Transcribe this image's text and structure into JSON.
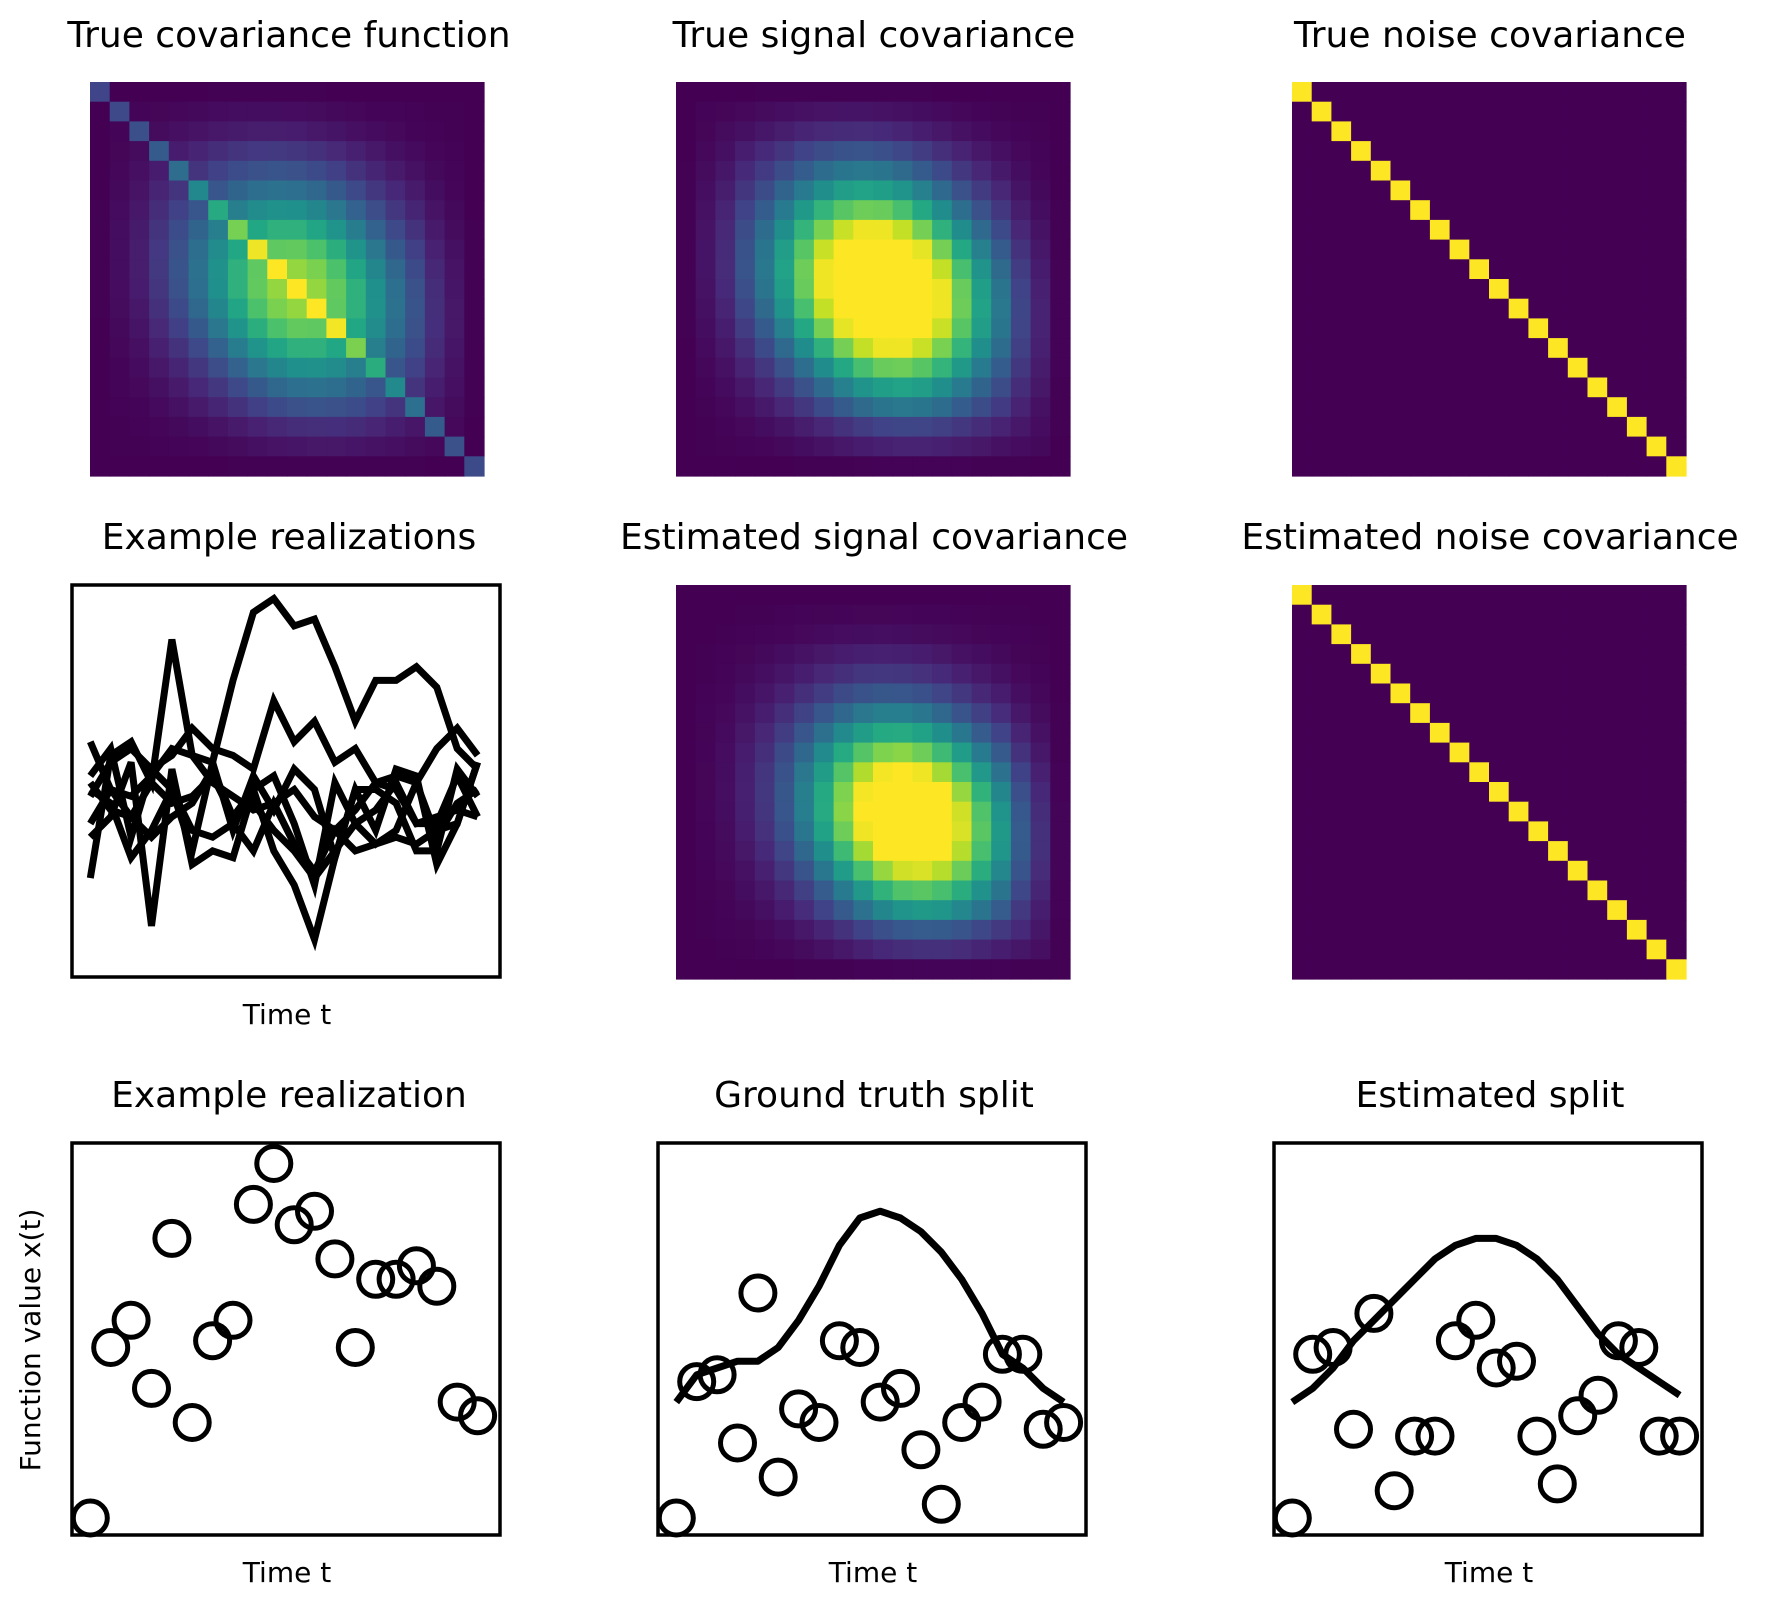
{
  "figure": {
    "colormap": "viridis",
    "line_color": "#000000",
    "marker_color": "#000000"
  },
  "panels": {
    "true_cov": {
      "title": "True covariance function"
    },
    "true_signal": {
      "title": "True signal covariance"
    },
    "true_noise": {
      "title": "True noise covariance"
    },
    "example_realizations": {
      "title": "Example realizations",
      "xlabel": "Time t"
    },
    "est_signal": {
      "title": "Estimated signal covariance"
    },
    "est_noise": {
      "title": "Estimated noise covariance"
    },
    "example_realization": {
      "title": "Example realization",
      "xlabel": "Time t",
      "ylabel": "Function value x(t)"
    },
    "ground_truth_split": {
      "title": "Ground truth split",
      "xlabel": "Time t"
    },
    "estimated_split": {
      "title": "Estimated split",
      "xlabel": "Time t"
    }
  },
  "chart_data": [
    {
      "id": "true_cov",
      "type": "heatmap",
      "title": "True covariance function",
      "size": 20,
      "model": "signal_plus_diagonal_noise",
      "signal_center": [
        10.5,
        10.5
      ],
      "signal_width": 4.2,
      "noise_variance": 0.35,
      "value_range": [
        0,
        1.15
      ]
    },
    {
      "id": "true_signal",
      "type": "heatmap",
      "title": "True signal covariance",
      "size": 20,
      "model": "gaussian_bump",
      "signal_center": [
        10.5,
        10.5
      ],
      "signal_width": 4.2,
      "value_range": [
        0,
        0.75
      ]
    },
    {
      "id": "true_noise",
      "type": "heatmap",
      "title": "True noise covariance",
      "size": 20,
      "model": "identity",
      "value_range": [
        0,
        1
      ]
    },
    {
      "id": "example_realizations",
      "type": "line",
      "title": "Example realizations",
      "xlabel": "Time t",
      "ylabel": "",
      "xlim": [
        -0.9,
        20.1
      ],
      "ylim": [
        -2.75,
        3.0
      ],
      "x": [
        0,
        1,
        2,
        3,
        4,
        5,
        6,
        7,
        8,
        9,
        10,
        11,
        12,
        13,
        14,
        15,
        16,
        17,
        18,
        19
      ],
      "series": [
        {
          "values": [
            0.7,
            0.0,
            -0.1,
            0.2,
            0.6,
            0.5,
            0.4,
            1.6,
            2.6,
            2.8,
            2.4,
            2.5,
            1.8,
            1.0,
            1.6,
            1.6,
            1.8,
            1.5,
            0.6,
            0.3
          ]
        },
        {
          "values": [
            -0.1,
            0.4,
            0.6,
            0.3,
            0.5,
            0.9,
            0.6,
            0.5,
            0.3,
            1.3,
            0.7,
            1.0,
            0.4,
            0.6,
            0.1,
            0.2,
            0.1,
            0.6,
            0.9,
            0.5
          ]
        },
        {
          "values": [
            -1.3,
            0.5,
            0.7,
            0.1,
            2.2,
            0.5,
            0.1,
            -0.1,
            -0.3,
            -0.2,
            0.0,
            -0.4,
            -0.6,
            -0.3,
            0.1,
            0.0,
            -0.5,
            -0.4,
            -0.3,
            -0.4
          ]
        },
        {
          "values": [
            0.2,
            0.6,
            -0.7,
            0.3,
            0.0,
            -0.9,
            0.4,
            -0.6,
            0.2,
            -0.3,
            0.3,
            0.0,
            -1.0,
            0.0,
            -0.6,
            0.3,
            0.2,
            -1.1,
            -0.5,
            0.4
          ]
        },
        {
          "values": [
            -0.5,
            0.0,
            -0.4,
            -0.7,
            -0.4,
            -0.2,
            0.3,
            -0.4,
            0.0,
            0.2,
            -0.5,
            -1.4,
            0.1,
            -0.5,
            -0.8,
            -0.6,
            0.1,
            -0.7,
            -0.2,
            0.0
          ]
        },
        {
          "values": [
            0.0,
            -0.2,
            -1.0,
            -0.6,
            0.0,
            -0.6,
            -0.7,
            -0.5,
            -0.9,
            -0.2,
            -0.8,
            -1.2,
            -0.6,
            -0.9,
            -0.8,
            -0.7,
            -0.8,
            -0.6,
            -0.5,
            0.4
          ]
        },
        {
          "values": [
            -0.7,
            -0.4,
            0.4,
            -2.0,
            0.3,
            -1.1,
            -0.9,
            -1.0,
            0.0,
            -0.9,
            -1.4,
            -2.2,
            -1.0,
            0.0,
            0.0,
            -0.2,
            -0.9,
            -0.9,
            0.3,
            -0.1
          ]
        },
        {
          "values": [
            0.1,
            -0.3,
            -0.4,
            0.1,
            -0.2,
            -0.1,
            0.2,
            -0.4,
            -0.2,
            -0.6,
            -0.9,
            -1.3,
            -0.9,
            -0.5,
            -0.3,
            0.1,
            -0.5,
            -0.5,
            0.2,
            -0.4
          ]
        }
      ]
    },
    {
      "id": "est_signal",
      "type": "heatmap",
      "title": "Estimated signal covariance",
      "size": 20,
      "model": "gaussian_bump",
      "signal_center": [
        11.8,
        11.8
      ],
      "signal_width": 3.9,
      "value_range": [
        0,
        0.8
      ]
    },
    {
      "id": "est_noise",
      "type": "heatmap",
      "title": "Estimated noise covariance",
      "size": 20,
      "model": "identity",
      "value_range": [
        0,
        1
      ]
    },
    {
      "id": "example_realization",
      "type": "scatter",
      "title": "Example realization",
      "xlabel": "Time t",
      "ylabel": "Function value x(t)",
      "xlim": [
        -0.9,
        20.1
      ],
      "ylim": [
        -2.75,
        3.0
      ],
      "x": [
        0,
        1,
        2,
        3,
        4,
        5,
        6,
        7,
        8,
        9,
        10,
        11,
        12,
        13,
        14,
        15,
        16,
        17,
        18,
        19
      ],
      "y": [
        -2.5,
        0.0,
        0.4,
        -0.6,
        1.6,
        -1.1,
        0.1,
        0.4,
        2.1,
        2.7,
        1.8,
        2.0,
        1.3,
        0.0,
        1.0,
        1.0,
        1.2,
        0.9,
        -0.8,
        -1.0
      ]
    },
    {
      "id": "ground_truth_split",
      "type": "scatter",
      "title": "Ground truth split",
      "xlabel": "Time t",
      "ylabel": "",
      "xlim": [
        -0.9,
        20.1
      ],
      "ylim": [
        -2.75,
        3.0
      ],
      "x": [
        0,
        1,
        2,
        3,
        4,
        5,
        6,
        7,
        8,
        9,
        10,
        11,
        12,
        13,
        14,
        15,
        16,
        17,
        18,
        19
      ],
      "y": [
        -2.5,
        -0.5,
        -0.4,
        -1.4,
        0.8,
        -1.9,
        -0.9,
        -1.1,
        0.1,
        0.0,
        -0.8,
        -0.6,
        -1.5,
        -2.3,
        -1.1,
        -0.8,
        -0.1,
        -0.1,
        -1.2,
        -1.1
      ],
      "line_x": [
        0,
        1,
        2,
        3,
        4,
        5,
        6,
        7,
        8,
        9,
        10,
        11,
        12,
        13,
        14,
        15,
        16,
        17,
        18,
        19
      ],
      "line_y": [
        -0.8,
        -0.4,
        -0.3,
        -0.2,
        -0.2,
        0.0,
        0.4,
        0.9,
        1.5,
        1.9,
        2.0,
        1.9,
        1.7,
        1.4,
        1.0,
        0.5,
        -0.1,
        -0.3,
        -0.6,
        -0.8
      ]
    },
    {
      "id": "estimated_split",
      "type": "scatter",
      "title": "Estimated split",
      "xlabel": "Time t",
      "ylabel": "",
      "xlim": [
        -0.9,
        20.1
      ],
      "ylim": [
        -2.75,
        3.0
      ],
      "x": [
        0,
        1,
        2,
        3,
        4,
        5,
        6,
        7,
        8,
        9,
        10,
        11,
        12,
        13,
        14,
        15,
        16,
        17,
        18,
        19
      ],
      "y": [
        -2.5,
        -0.1,
        0.0,
        -1.2,
        0.5,
        -2.1,
        -1.3,
        -1.3,
        0.1,
        0.4,
        -0.3,
        -0.2,
        -1.3,
        -2.0,
        -1.0,
        -0.7,
        0.1,
        0.0,
        -1.3,
        -1.3
      ],
      "line_x": [
        0,
        1,
        2,
        3,
        4,
        5,
        6,
        7,
        8,
        9,
        10,
        11,
        12,
        13,
        14,
        15,
        16,
        17,
        18,
        19
      ],
      "line_y": [
        -0.8,
        -0.6,
        -0.3,
        0.1,
        0.4,
        0.7,
        1.0,
        1.3,
        1.5,
        1.6,
        1.6,
        1.5,
        1.3,
        1.0,
        0.6,
        0.2,
        -0.1,
        -0.3,
        -0.5,
        -0.7
      ]
    }
  ]
}
